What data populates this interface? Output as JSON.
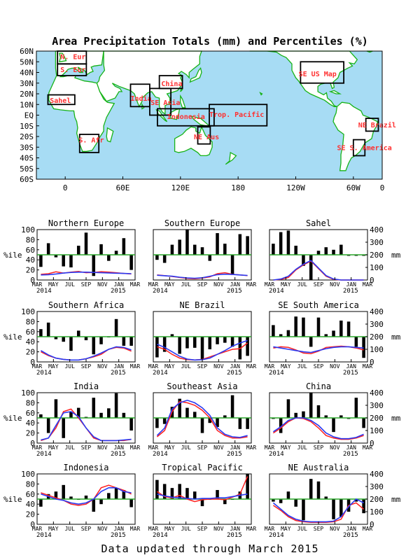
{
  "title": "Area Precipitation Totals (mm) and Percentiles (%)",
  "footer": "Data updated through March 2015",
  "colors": {
    "ocean": "#a7dcf4",
    "land": "#ffffff",
    "coast": "#17b317",
    "region_label": "#ff3030",
    "ref_line": "#2aa52a",
    "red_line": "#ff2020",
    "blue_line": "#2a3af2",
    "bar": "#000000"
  },
  "map": {
    "lat_labels": [
      "60N",
      "50N",
      "40N",
      "30N",
      "20N",
      "10N",
      "EQ",
      "10S",
      "20S",
      "30S",
      "40S",
      "50S",
      "60S"
    ],
    "lon_labels": [
      "0",
      "60E",
      "120E",
      "180",
      "120W",
      "60W",
      "0"
    ],
    "regions": [
      {
        "label": "N. Eur"
      },
      {
        "label": "S. Eur"
      },
      {
        "label": "Sahel"
      },
      {
        "label": "S. Afr"
      },
      {
        "label": "India"
      },
      {
        "label": "SE Asia"
      },
      {
        "label": "China"
      },
      {
        "label": "Indonesia"
      },
      {
        "label": "Trop. Pacific"
      },
      {
        "label": "NE Aus"
      },
      {
        "label": "SE US Map"
      },
      {
        "label": "NE Brazil"
      },
      {
        "label": "SE S. America"
      }
    ]
  },
  "chart_data": {
    "type": "bar",
    "months_per_panel": 13,
    "x_tick_labels": [
      "MAR",
      "MAY",
      "JUL",
      "SEP",
      "NOV",
      "JAN",
      "MAR"
    ],
    "year_labels": [
      "2014",
      "2015"
    ],
    "left_axis": {
      "label": "%ile",
      "range": [
        0,
        100
      ],
      "ticks": [
        0,
        20,
        40,
        60,
        80,
        100
      ]
    },
    "right_axis": {
      "label": "mm",
      "range": [
        0,
        400
      ],
      "ticks": [
        0,
        100,
        200,
        300,
        400
      ]
    },
    "reference_line": 50,
    "panels": [
      {
        "title": "Northern Europe",
        "bars": [
          26,
          73,
          45,
          27,
          25,
          68,
          94,
          8,
          71,
          38,
          58,
          83,
          20
        ],
        "red_mm": [
          45,
          50,
          65,
          55,
          62,
          68,
          58,
          60,
          66,
          63,
          58,
          52,
          48
        ],
        "blue_mm": [
          40,
          42,
          48,
          55,
          60,
          62,
          62,
          60,
          58,
          56,
          54,
          52,
          50
        ]
      },
      {
        "title": "Southern Europe",
        "bars": [
          40,
          34,
          70,
          80,
          100,
          70,
          65,
          38,
          93,
          72,
          10,
          91,
          87
        ],
        "red_mm": [
          40,
          35,
          28,
          20,
          12,
          10,
          15,
          25,
          50,
          58,
          45,
          40,
          35
        ],
        "blue_mm": [
          38,
          34,
          30,
          22,
          16,
          14,
          18,
          30,
          42,
          46,
          44,
          40,
          36
        ]
      },
      {
        "title": "Sahel",
        "bars": [
          72,
          95,
          98,
          68,
          28,
          0,
          58,
          65,
          60,
          70,
          48,
          48,
          48
        ],
        "red_mm": [
          0,
          5,
          20,
          80,
          120,
          150,
          90,
          30,
          5,
          0,
          0,
          0,
          0
        ],
        "blue_mm": [
          0,
          8,
          30,
          85,
          125,
          155,
          95,
          35,
          8,
          0,
          0,
          0,
          0
        ]
      },
      {
        "title": "Southern Africa",
        "bars": [
          65,
          78,
          45,
          40,
          22,
          62,
          43,
          15,
          35,
          50,
          85,
          32,
          32
        ],
        "red_mm": [
          80,
          50,
          30,
          20,
          15,
          15,
          25,
          40,
          60,
          100,
          115,
          110,
          85
        ],
        "blue_mm": [
          90,
          55,
          30,
          20,
          15,
          15,
          25,
          45,
          70,
          100,
          120,
          115,
          95
        ]
      },
      {
        "title": "NE Brazil",
        "bars": [
          9,
          20,
          55,
          16,
          27,
          28,
          5,
          25,
          35,
          38,
          30,
          5,
          12
        ],
        "red_mm": [
          120,
          100,
          60,
          30,
          18,
          15,
          20,
          40,
          60,
          80,
          100,
          105,
          150
        ],
        "blue_mm": [
          140,
          115,
          80,
          45,
          22,
          15,
          18,
          30,
          60,
          90,
          125,
          150,
          170
        ]
      },
      {
        "title": "SE South America",
        "bars": [
          73,
          55,
          63,
          90,
          88,
          30,
          88,
          55,
          62,
          82,
          80,
          30,
          8
        ],
        "red_mm": [
          110,
          120,
          115,
          95,
          70,
          65,
          85,
          115,
          120,
          125,
          120,
          110,
          95
        ],
        "blue_mm": [
          120,
          110,
          100,
          90,
          80,
          75,
          90,
          105,
          115,
          120,
          120,
          115,
          110
        ]
      },
      {
        "title": "India",
        "bars": [
          57,
          20,
          87,
          10,
          62,
          70,
          52,
          90,
          60,
          69,
          99,
          60,
          25
        ],
        "red_mm": [
          20,
          40,
          120,
          250,
          270,
          200,
          120,
          40,
          20,
          20,
          20,
          20,
          30
        ],
        "blue_mm": [
          25,
          40,
          140,
          240,
          250,
          210,
          120,
          50,
          20,
          20,
          20,
          25,
          30
        ]
      },
      {
        "title": "Southeast Asia",
        "bars": [
          30,
          38,
          72,
          88,
          70,
          62,
          20,
          40,
          32,
          55,
          95,
          28,
          28
        ],
        "red_mm": [
          50,
          100,
          250,
          330,
          320,
          300,
          260,
          200,
          100,
          60,
          40,
          40,
          50
        ],
        "blue_mm": [
          60,
          120,
          270,
          320,
          340,
          320,
          280,
          220,
          120,
          70,
          50,
          45,
          60
        ]
      },
      {
        "title": "China",
        "bars": [
          48,
          20,
          87,
          60,
          63,
          100,
          75,
          55,
          22,
          55,
          48,
          90,
          30
        ],
        "red_mm": [
          80,
          120,
          170,
          200,
          195,
          170,
          120,
          60,
          40,
          30,
          30,
          40,
          60
        ],
        "blue_mm": [
          90,
          130,
          180,
          200,
          200,
          180,
          140,
          80,
          50,
          35,
          35,
          45,
          70
        ]
      },
      {
        "title": "Indonesia",
        "bars": [
          35,
          60,
          65,
          78,
          55,
          50,
          57,
          25,
          40,
          62,
          72,
          68,
          34
        ],
        "red_mm": [
          250,
          230,
          210,
          190,
          160,
          150,
          160,
          200,
          290,
          310,
          290,
          270,
          240
        ],
        "blue_mm": [
          240,
          220,
          200,
          190,
          170,
          160,
          170,
          200,
          260,
          290,
          290,
          260,
          250
        ]
      },
      {
        "title": "Tropical Pacific",
        "bars": [
          88,
          80,
          72,
          80,
          72,
          65,
          36,
          50,
          68,
          40,
          50,
          65,
          100
        ],
        "red_mm": [
          260,
          220,
          210,
          230,
          200,
          180,
          195,
          200,
          200,
          195,
          215,
          240,
          380
        ],
        "blue_mm": [
          240,
          225,
          215,
          210,
          205,
          200,
          205,
          205,
          210,
          210,
          220,
          230,
          240
        ]
      },
      {
        "title": "NE Australia",
        "bars": [
          45,
          42,
          65,
          35,
          8,
          90,
          85,
          55,
          10,
          15,
          25,
          45,
          22
        ],
        "red_mm": [
          150,
          110,
          60,
          30,
          20,
          15,
          15,
          15,
          20,
          40,
          150,
          170,
          120
        ],
        "blue_mm": [
          170,
          120,
          70,
          40,
          25,
          20,
          20,
          20,
          25,
          60,
          140,
          200,
          170
        ]
      }
    ]
  }
}
